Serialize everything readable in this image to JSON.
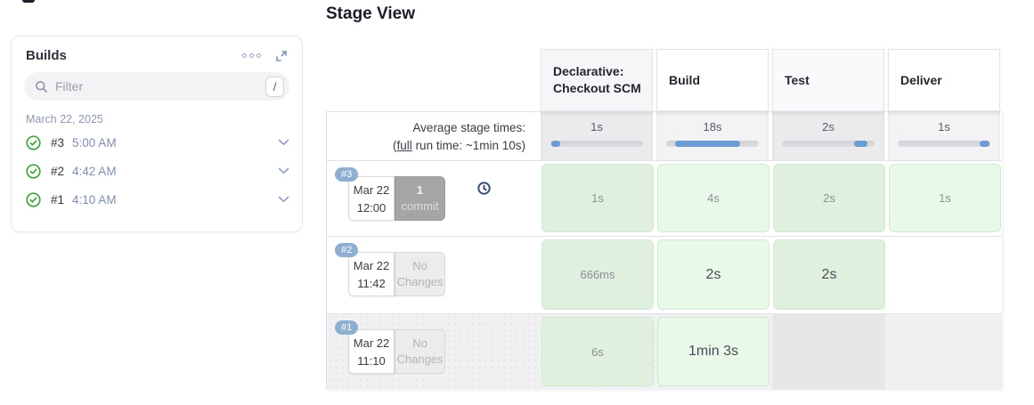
{
  "colors": {
    "accent_blue": "#6b9bd2",
    "success_green": "#3fa33f",
    "badge_blue": "#8fafd1"
  },
  "sidebar": {
    "title": "Builds",
    "menu_icon": "ellipsis-icon",
    "expand_icon": "expand-icon",
    "filter": {
      "placeholder": "Filter",
      "shortcut_key": "/"
    },
    "date_group": "March 22, 2025",
    "builds": [
      {
        "id": "#3",
        "time": "5:00 AM",
        "status": "success"
      },
      {
        "id": "#2",
        "time": "4:42 AM",
        "status": "success"
      },
      {
        "id": "#1",
        "time": "4:10 AM",
        "status": "success"
      }
    ]
  },
  "stage_view": {
    "title": "Stage View",
    "columns": [
      "Declarative: Checkout SCM",
      "Build",
      "Test",
      "Deliver"
    ],
    "average": {
      "label": "Average stage times:",
      "runtime_open": "(",
      "runtime_link": "full",
      "runtime_rest": " run time: ~1min 10s)",
      "values": [
        "1s",
        "18s",
        "2s",
        "1s"
      ],
      "bars": [
        {
          "start": 1,
          "end": 11
        },
        {
          "start": 10,
          "end": 80
        },
        {
          "start": 78,
          "end": 92
        },
        {
          "start": 88,
          "end": 99
        }
      ]
    },
    "runs": [
      {
        "id": "#3",
        "date": "Mar 22",
        "time": "12:00",
        "changes_count": "1",
        "changes_word": "commit",
        "cells": [
          "1s",
          "4s",
          "2s",
          "1s"
        ]
      },
      {
        "id": "#2",
        "date": "Mar 22",
        "time": "11:42",
        "changes_label": "No Changes",
        "cells": [
          "666ms",
          "2s",
          "2s",
          null
        ]
      },
      {
        "id": "#1",
        "date": "Mar 22",
        "time": "11:10",
        "changes_label": "No Changes",
        "cells": [
          "6s",
          "1min 3s",
          null,
          null
        ]
      }
    ]
  }
}
